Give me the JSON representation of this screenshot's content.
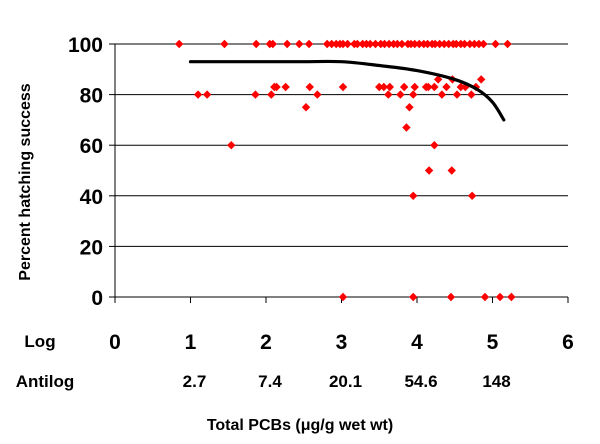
{
  "chart_data": {
    "type": "scatter",
    "title": "",
    "xlabel": "Total PCBs (μg/g wet wt)",
    "ylabel": "Percent hatching success",
    "xlim": [
      0,
      6
    ],
    "ylim": [
      0,
      100
    ],
    "x_row_label": "Log",
    "x_ticks": [
      "0",
      "1",
      "2",
      "3",
      "4",
      "5",
      "6"
    ],
    "antilog_row_label": "Antilog",
    "antilog_ticks": [
      {
        "x": 1,
        "label": "2.7"
      },
      {
        "x": 2,
        "label": "7.4"
      },
      {
        "x": 3,
        "label": "20.1"
      },
      {
        "x": 4,
        "label": "54.6"
      },
      {
        "x": 5,
        "label": "148"
      }
    ],
    "y_ticks": [
      "0",
      "20",
      "40",
      "60",
      "80",
      "100"
    ],
    "y_tick_values": [
      0,
      20,
      40,
      60,
      80,
      100
    ],
    "grid": true,
    "point_color": "#ff0000",
    "trend_color": "#000000",
    "points": [
      {
        "x": 0.85,
        "y": 100
      },
      {
        "x": 1.45,
        "y": 100
      },
      {
        "x": 1.87,
        "y": 100
      },
      {
        "x": 2.05,
        "y": 100
      },
      {
        "x": 2.09,
        "y": 100
      },
      {
        "x": 2.28,
        "y": 100
      },
      {
        "x": 2.44,
        "y": 100
      },
      {
        "x": 2.57,
        "y": 100
      },
      {
        "x": 2.81,
        "y": 100
      },
      {
        "x": 2.87,
        "y": 100
      },
      {
        "x": 2.93,
        "y": 100
      },
      {
        "x": 2.98,
        "y": 100
      },
      {
        "x": 3.02,
        "y": 100
      },
      {
        "x": 3.08,
        "y": 100
      },
      {
        "x": 3.17,
        "y": 100
      },
      {
        "x": 3.21,
        "y": 100
      },
      {
        "x": 3.28,
        "y": 100
      },
      {
        "x": 3.33,
        "y": 100
      },
      {
        "x": 3.38,
        "y": 100
      },
      {
        "x": 3.45,
        "y": 100
      },
      {
        "x": 3.52,
        "y": 100
      },
      {
        "x": 3.57,
        "y": 100
      },
      {
        "x": 3.63,
        "y": 100
      },
      {
        "x": 3.69,
        "y": 100
      },
      {
        "x": 3.74,
        "y": 100
      },
      {
        "x": 3.8,
        "y": 100
      },
      {
        "x": 3.88,
        "y": 100
      },
      {
        "x": 3.92,
        "y": 100
      },
      {
        "x": 3.97,
        "y": 100
      },
      {
        "x": 4.03,
        "y": 100
      },
      {
        "x": 4.09,
        "y": 100
      },
      {
        "x": 4.14,
        "y": 100
      },
      {
        "x": 4.2,
        "y": 100
      },
      {
        "x": 4.24,
        "y": 100
      },
      {
        "x": 4.3,
        "y": 100
      },
      {
        "x": 4.36,
        "y": 100
      },
      {
        "x": 4.42,
        "y": 100
      },
      {
        "x": 4.48,
        "y": 100
      },
      {
        "x": 4.52,
        "y": 100
      },
      {
        "x": 4.58,
        "y": 100
      },
      {
        "x": 4.63,
        "y": 100
      },
      {
        "x": 4.7,
        "y": 100
      },
      {
        "x": 4.76,
        "y": 100
      },
      {
        "x": 4.82,
        "y": 100
      },
      {
        "x": 4.88,
        "y": 100
      },
      {
        "x": 5.04,
        "y": 100
      },
      {
        "x": 5.2,
        "y": 100
      },
      {
        "x": 1.1,
        "y": 80
      },
      {
        "x": 1.22,
        "y": 80
      },
      {
        "x": 1.86,
        "y": 80
      },
      {
        "x": 2.07,
        "y": 80
      },
      {
        "x": 2.11,
        "y": 83
      },
      {
        "x": 2.14,
        "y": 83
      },
      {
        "x": 2.26,
        "y": 83
      },
      {
        "x": 2.58,
        "y": 83
      },
      {
        "x": 2.68,
        "y": 80
      },
      {
        "x": 3.02,
        "y": 83
      },
      {
        "x": 3.5,
        "y": 83
      },
      {
        "x": 3.56,
        "y": 83
      },
      {
        "x": 3.62,
        "y": 80
      },
      {
        "x": 3.64,
        "y": 83
      },
      {
        "x": 3.78,
        "y": 80
      },
      {
        "x": 3.83,
        "y": 83
      },
      {
        "x": 3.95,
        "y": 80
      },
      {
        "x": 3.97,
        "y": 83
      },
      {
        "x": 4.12,
        "y": 83
      },
      {
        "x": 4.15,
        "y": 83
      },
      {
        "x": 4.23,
        "y": 83
      },
      {
        "x": 4.28,
        "y": 86
      },
      {
        "x": 4.33,
        "y": 80
      },
      {
        "x": 4.39,
        "y": 83
      },
      {
        "x": 4.47,
        "y": 86
      },
      {
        "x": 4.53,
        "y": 80
      },
      {
        "x": 4.58,
        "y": 83
      },
      {
        "x": 4.64,
        "y": 83
      },
      {
        "x": 4.72,
        "y": 80
      },
      {
        "x": 4.78,
        "y": 83
      },
      {
        "x": 4.85,
        "y": 86
      },
      {
        "x": 2.53,
        "y": 75
      },
      {
        "x": 3.9,
        "y": 75
      },
      {
        "x": 3.86,
        "y": 67
      },
      {
        "x": 1.54,
        "y": 60
      },
      {
        "x": 4.23,
        "y": 60
      },
      {
        "x": 4.16,
        "y": 50
      },
      {
        "x": 4.46,
        "y": 50
      },
      {
        "x": 3.95,
        "y": 40
      },
      {
        "x": 4.73,
        "y": 40
      },
      {
        "x": 3.02,
        "y": 0
      },
      {
        "x": 3.95,
        "y": 0
      },
      {
        "x": 4.45,
        "y": 0
      },
      {
        "x": 4.9,
        "y": 0
      },
      {
        "x": 5.1,
        "y": 0
      },
      {
        "x": 5.25,
        "y": 0
      }
    ],
    "trend_line": [
      {
        "x": 1.0,
        "y": 93
      },
      {
        "x": 1.5,
        "y": 93
      },
      {
        "x": 2.0,
        "y": 93
      },
      {
        "x": 2.5,
        "y": 93
      },
      {
        "x": 3.0,
        "y": 93
      },
      {
        "x": 3.5,
        "y": 91.5
      },
      {
        "x": 4.0,
        "y": 89.5
      },
      {
        "x": 4.5,
        "y": 86
      },
      {
        "x": 4.8,
        "y": 82
      },
      {
        "x": 5.0,
        "y": 77
      },
      {
        "x": 5.15,
        "y": 70
      }
    ]
  }
}
